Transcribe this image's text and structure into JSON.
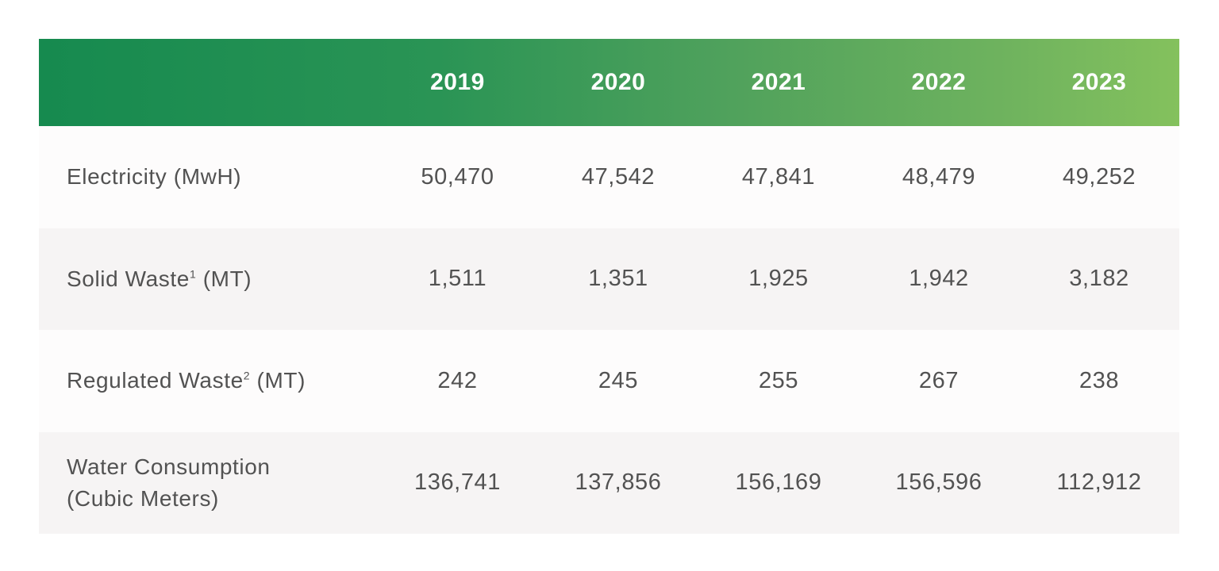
{
  "header": {
    "years": [
      "2019",
      "2020",
      "2021",
      "2022",
      "2023"
    ]
  },
  "rows": [
    {
      "label": "Electricity (MwH)",
      "values": [
        "50,470",
        "47,542",
        "47,841",
        "48,479",
        "49,252"
      ]
    },
    {
      "label_main": "Solid Waste",
      "label_sup": "1",
      "label_unit": " (MT)",
      "values": [
        "1,511",
        "1,351",
        "1,925",
        "1,942",
        "3,182"
      ]
    },
    {
      "label_main": "Regulated Waste",
      "label_sup": "2",
      "label_unit": " (MT)",
      "values": [
        "242",
        "245",
        "255",
        "267",
        "238"
      ]
    },
    {
      "label_line1": "Water Consumption",
      "label_line2": "(Cubic Meters)",
      "values": [
        "136,741",
        "137,856",
        "156,169",
        "156,596",
        "112,912"
      ]
    }
  ],
  "colors": {
    "header_gradient_start": "#168a4f",
    "header_gradient_end": "#84c15d",
    "row_light": "#fdfcfc",
    "row_dark": "#f6f4f4",
    "text": "#525252"
  }
}
